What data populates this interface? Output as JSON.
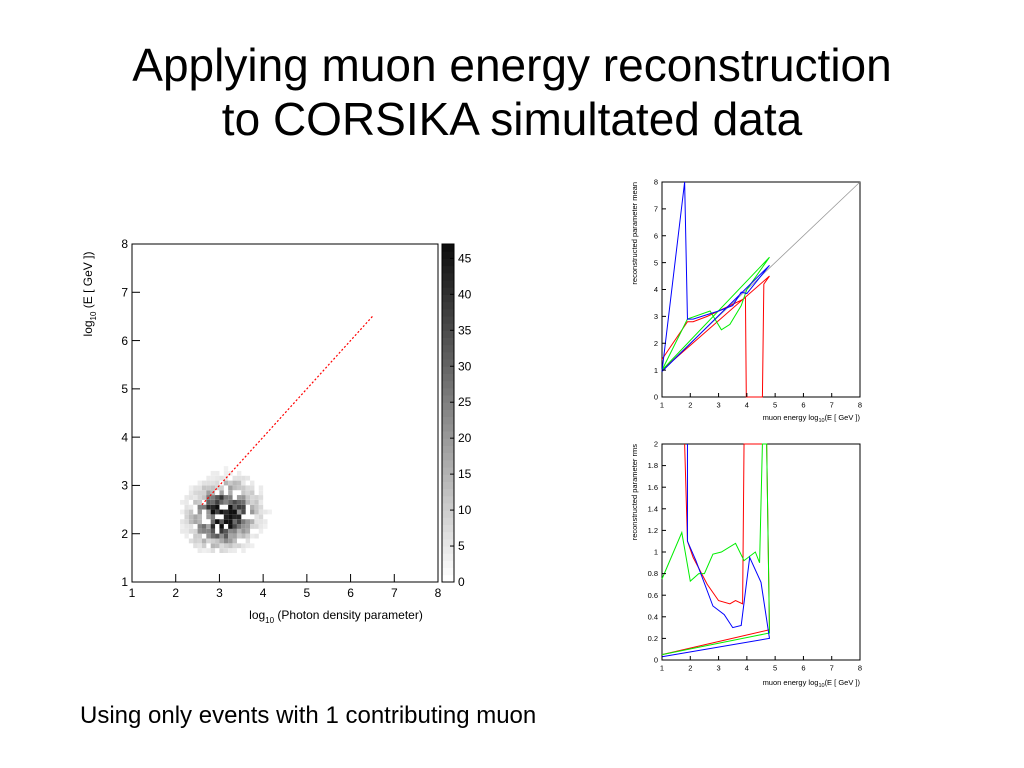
{
  "slide": {
    "title_line1": "Applying muon energy reconstruction",
    "title_line2": "to CORSIKA simultated data",
    "caption": "Using only events with 1 contributing muon"
  },
  "chart_data": [
    {
      "type": "heatmap",
      "xlabel_pre": "log",
      "xlabel_sub": "10",
      "xlabel_post": " (Photon density parameter)",
      "ylabel_pre": "log",
      "ylabel_sub": "10",
      "ylabel_post": " (E [ GeV ])",
      "xlim": [
        1,
        8
      ],
      "ylim": [
        1,
        8
      ],
      "x_ticks": [
        "1",
        "2",
        "3",
        "4",
        "5",
        "6",
        "7",
        "8"
      ],
      "y_ticks": [
        "1",
        "2",
        "3",
        "4",
        "5",
        "6",
        "7",
        "8"
      ],
      "colorbar": {
        "range": [
          0,
          47
        ],
        "ticks": [
          "0",
          "5",
          "10",
          "15",
          "20",
          "25",
          "30",
          "35",
          "40",
          "45"
        ]
      },
      "density_peak": {
        "x": 3.05,
        "y": 2.35,
        "max_count": 45
      },
      "reference_line": {
        "color": "#ff0000",
        "style": "dotted",
        "points": [
          [
            2.6,
            2.6
          ],
          [
            6.5,
            6.5
          ]
        ]
      }
    },
    {
      "type": "line",
      "xlabel_pre": "muon energy log",
      "xlabel_sub": "10",
      "xlabel_post": "(E [ GeV ])",
      "ylabel": "reconstructed parameter mean",
      "xlim": [
        1,
        8
      ],
      "ylim": [
        0,
        8
      ],
      "x_ticks": [
        "1",
        "2",
        "3",
        "4",
        "5",
        "6",
        "7",
        "8"
      ],
      "y_ticks": [
        "0",
        "1",
        "2",
        "3",
        "4",
        "5",
        "6",
        "7",
        "8"
      ],
      "diagonal": {
        "color": "#999999",
        "points": [
          [
            1,
            1
          ],
          [
            8,
            8
          ]
        ]
      },
      "series": [
        {
          "color": "#ff0000",
          "points": [
            [
              1,
              1.4
            ],
            [
              1.9,
              2.8
            ],
            [
              2.1,
              2.8
            ],
            [
              2.6,
              3.0
            ],
            [
              3.2,
              3.3
            ],
            [
              3.8,
              3.6
            ],
            [
              3.95,
              3.7
            ],
            [
              3.98,
              0
            ],
            [
              4.55,
              0
            ],
            [
              4.6,
              4.2
            ],
            [
              4.8,
              4.5
            ],
            [
              1,
              1.0
            ]
          ]
        },
        {
          "color": "#00ee00",
          "points": [
            [
              1,
              1.0
            ],
            [
              1.9,
              2.9
            ],
            [
              2.7,
              3.2
            ],
            [
              3.1,
              2.5
            ],
            [
              3.4,
              2.7
            ],
            [
              3.8,
              3.4
            ],
            [
              4.0,
              4.0
            ],
            [
              4.8,
              5.2
            ],
            [
              1,
              1.0
            ]
          ]
        },
        {
          "color": "#0000ff",
          "points": [
            [
              1,
              0.95
            ],
            [
              1.8,
              8.0
            ],
            [
              1.9,
              2.9
            ],
            [
              2.1,
              2.9
            ],
            [
              3.0,
              3.2
            ],
            [
              3.5,
              3.4
            ],
            [
              3.8,
              3.9
            ],
            [
              4.0,
              3.85
            ],
            [
              4.8,
              4.9
            ],
            [
              1,
              0.95
            ]
          ]
        }
      ]
    },
    {
      "type": "line",
      "xlabel_pre": "muon energy log",
      "xlabel_sub": "10",
      "xlabel_post": "(E [ GeV ])",
      "ylabel": "reconstructed parameter rms",
      "xlim": [
        1,
        8
      ],
      "ylim": [
        0,
        2
      ],
      "x_ticks": [
        "1",
        "2",
        "3",
        "4",
        "5",
        "6",
        "7",
        "8"
      ],
      "y_ticks": [
        "0",
        "0.2",
        "0.4",
        "0.6",
        "0.8",
        "1",
        "1.2",
        "1.4",
        "1.6",
        "1.8",
        "2"
      ],
      "series": [
        {
          "color": "#ff0000",
          "points": [
            [
              1.8,
              2.0
            ],
            [
              1.9,
              1.1
            ],
            [
              2.1,
              0.95
            ],
            [
              2.6,
              0.7
            ],
            [
              3.0,
              0.55
            ],
            [
              3.4,
              0.52
            ],
            [
              3.6,
              0.55
            ],
            [
              3.85,
              0.52
            ],
            [
              3.9,
              2.0
            ],
            [
              4.7,
              2.0
            ],
            [
              4.8,
              0.28
            ],
            [
              1,
              0.05
            ]
          ]
        },
        {
          "color": "#00ee00",
          "points": [
            [
              1,
              0.75
            ],
            [
              1.7,
              1.18
            ],
            [
              2.0,
              0.73
            ],
            [
              2.3,
              0.8
            ],
            [
              2.5,
              0.8
            ],
            [
              2.8,
              0.98
            ],
            [
              3.1,
              1.0
            ],
            [
              3.6,
              1.08
            ],
            [
              3.9,
              0.92
            ],
            [
              4.3,
              1.0
            ],
            [
              4.45,
              0.9
            ],
            [
              4.55,
              2.0
            ],
            [
              4.7,
              2.0
            ],
            [
              4.8,
              0.25
            ],
            [
              1,
              0.05
            ]
          ]
        },
        {
          "color": "#0000ff",
          "points": [
            [
              1.9,
              2.0
            ],
            [
              1.9,
              1.1
            ],
            [
              2.2,
              0.92
            ],
            [
              2.8,
              0.5
            ],
            [
              3.2,
              0.42
            ],
            [
              3.5,
              0.3
            ],
            [
              3.8,
              0.32
            ],
            [
              4.1,
              0.95
            ],
            [
              4.5,
              0.72
            ],
            [
              4.8,
              0.2
            ],
            [
              1,
              0.03
            ]
          ]
        }
      ]
    }
  ]
}
